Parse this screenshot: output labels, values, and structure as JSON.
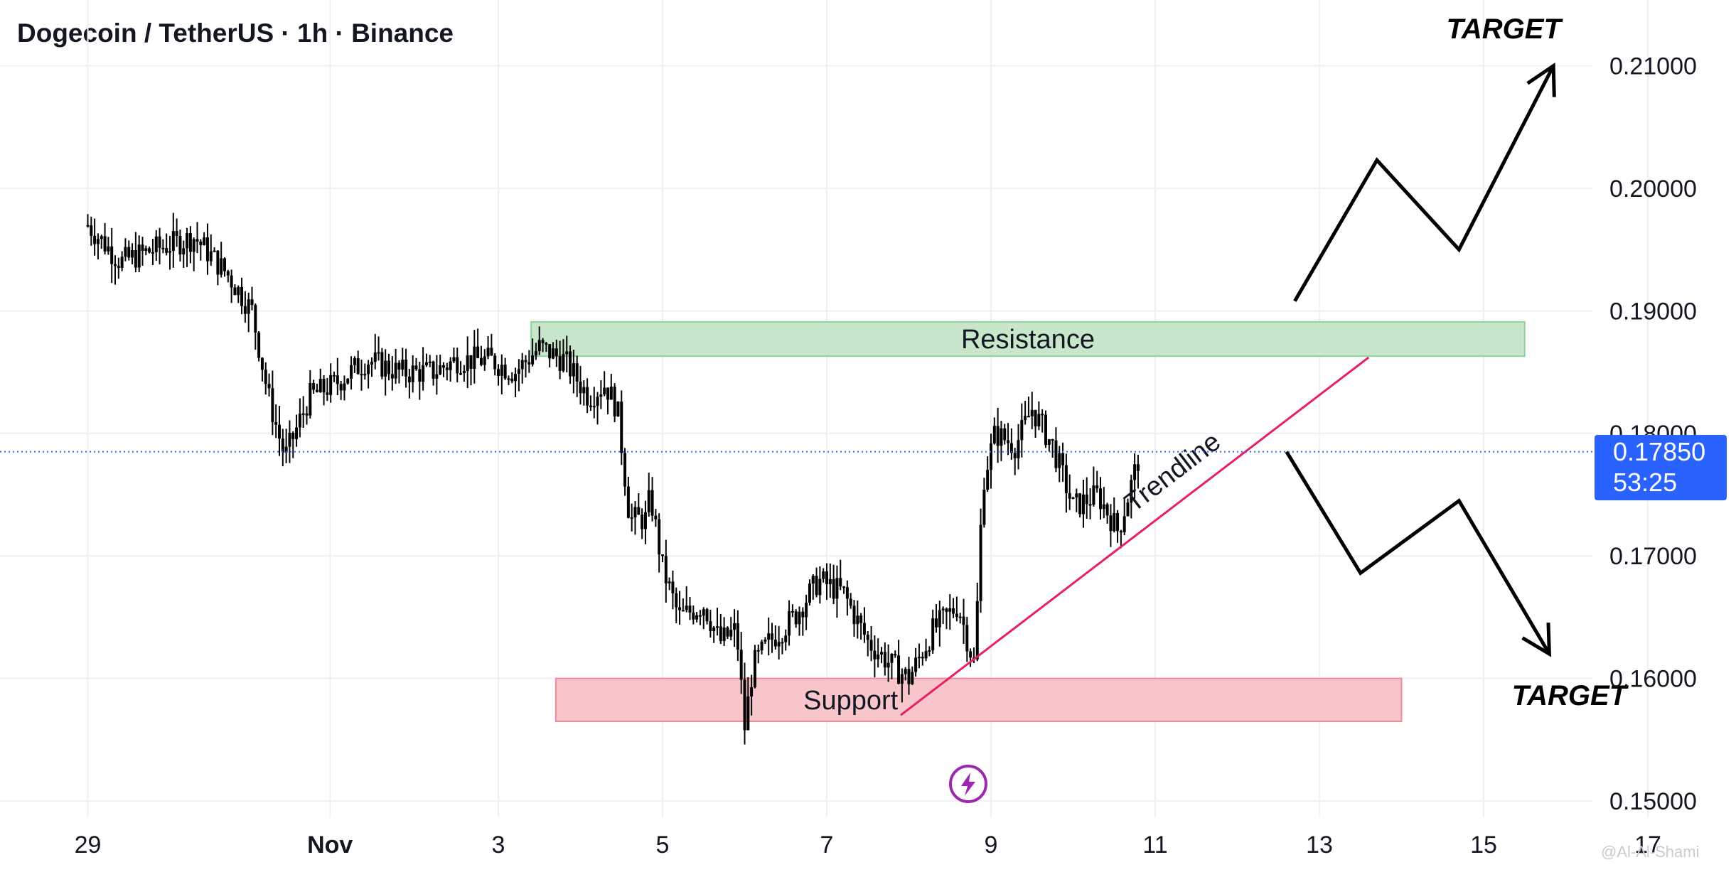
{
  "header": {
    "title": "Dogecoin / TetherUS · 1h · Binance"
  },
  "price_tag": {
    "price": "0.17850",
    "countdown": "53:25"
  },
  "watermark": "@Al-Al-Shami",
  "colors": {
    "accent": "#2962ff",
    "resistance": "#c8e6c9",
    "support": "#f8c5cb",
    "trendline": "#e91e63",
    "candles": "#000000",
    "flash": "#9c27b0"
  },
  "icons": [
    "flash-icon"
  ],
  "chart_data": {
    "type": "candlestick",
    "title": "Dogecoin / TetherUS · 1h · Binance",
    "interval": "1h",
    "exchange": "Binance",
    "x_ticks": [
      "29",
      "Nov",
      "3",
      "5",
      "7",
      "9",
      "11",
      "13",
      "15",
      "17"
    ],
    "y_ticks": [
      "0.21000",
      "0.20000",
      "0.19000",
      "0.18000",
      "0.17000",
      "0.16000",
      "0.15000"
    ],
    "ylim": [
      0.145,
      0.216
    ],
    "x_axis_unit": "day (Oct 29 – Nov 17)",
    "xlim_days": [
      -3,
      17.4
    ],
    "current_price": 0.1785,
    "grid": true,
    "price_path_days": [
      -3.0,
      -2.6,
      -2.2,
      -1.7,
      -1.3,
      -1.0,
      -0.8,
      -0.6,
      -0.3,
      0.0,
      0.4,
      0.8,
      1.2,
      1.5,
      1.9,
      2.2,
      2.5,
      2.8,
      3.1,
      3.3,
      3.45,
      3.6,
      3.8,
      3.85,
      4.0,
      4.2,
      4.5,
      4.7,
      4.9,
      5.0,
      5.1,
      5.3,
      5.6,
      5.9,
      6.2,
      6.5,
      6.8,
      7.0,
      7.3,
      7.6,
      7.8,
      7.9,
      8.05,
      8.3,
      8.5,
      8.75,
      9.0,
      9.3,
      9.55,
      9.8
    ],
    "price_path_values": [
      0.197,
      0.194,
      0.195,
      0.196,
      0.193,
      0.19,
      0.183,
      0.178,
      0.183,
      0.184,
      0.186,
      0.185,
      0.185,
      0.186,
      0.186,
      0.185,
      0.187,
      0.186,
      0.183,
      0.184,
      0.182,
      0.173,
      0.173,
      0.175,
      0.169,
      0.165,
      0.166,
      0.163,
      0.164,
      0.156,
      0.161,
      0.163,
      0.165,
      0.168,
      0.167,
      0.163,
      0.161,
      0.16,
      0.164,
      0.166,
      0.161,
      0.176,
      0.18,
      0.179,
      0.182,
      0.179,
      0.174,
      0.175,
      0.172,
      0.178
    ],
    "zones": [
      {
        "label": "Resistance",
        "from_day": 2.4,
        "to_day": 14.5,
        "low": 0.1863,
        "high": 0.1891
      },
      {
        "label": "Support",
        "from_day": 2.7,
        "to_day": 13.0,
        "low": 0.1565,
        "high": 0.16
      }
    ],
    "trendline": {
      "label": "Trendline",
      "from": [
        6.9,
        0.157
      ],
      "to": [
        12.6,
        0.1862
      ]
    },
    "projections": [
      {
        "label": "TARGET",
        "points": [
          [
            11.7,
            0.1908
          ],
          [
            12.7,
            0.2023
          ],
          [
            13.7,
            0.195
          ],
          [
            14.85,
            0.21
          ]
        ]
      },
      {
        "label": "TARGET",
        "points": [
          [
            11.6,
            0.1785
          ],
          [
            12.5,
            0.1686
          ],
          [
            13.7,
            0.1745
          ],
          [
            14.8,
            0.162
          ]
        ]
      }
    ]
  }
}
